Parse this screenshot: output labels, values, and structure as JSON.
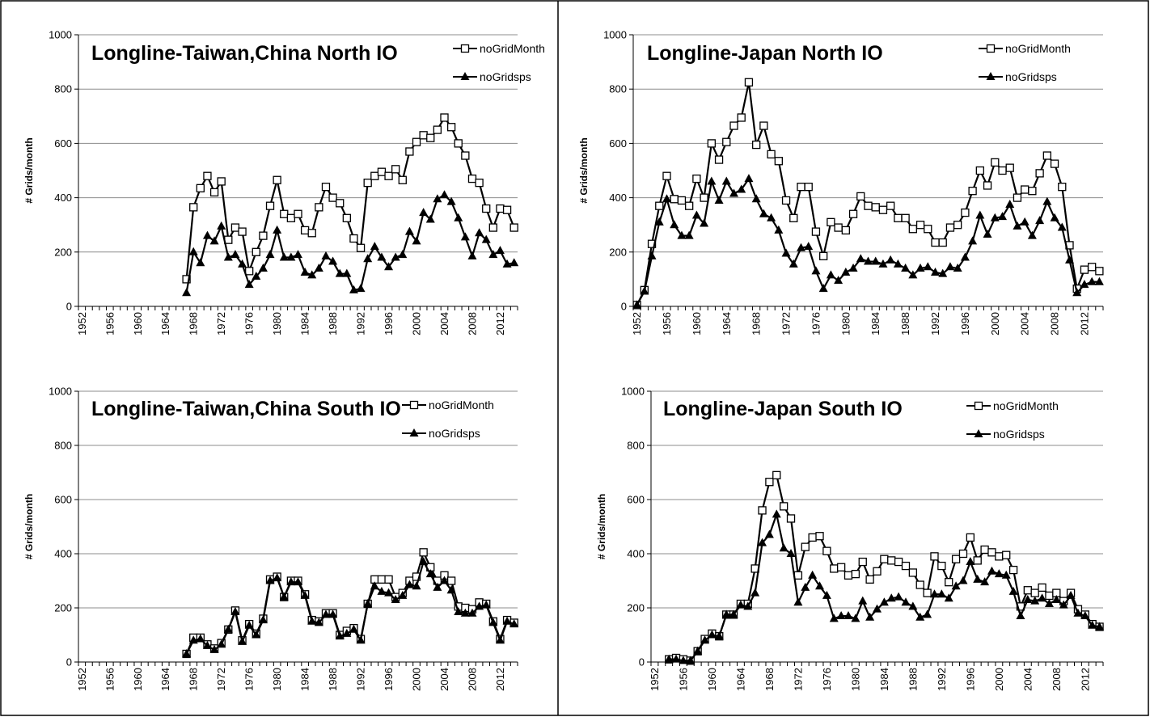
{
  "chart_data": [
    {
      "type": "line",
      "title": "Longline-Taiwan,China North IO",
      "ylabel": "# Grids/month",
      "categories": [
        "1952",
        null,
        null,
        null,
        "1956",
        null,
        null,
        null,
        "1960",
        null,
        null,
        null,
        "1964",
        null,
        null,
        null,
        "1968",
        null,
        null,
        null,
        "1972",
        null,
        null,
        null,
        "1976",
        null,
        null,
        null,
        "1980",
        null,
        null,
        null,
        "1984",
        null,
        null,
        null,
        "1988",
        null,
        null,
        null,
        "1992",
        null,
        null,
        null,
        "1996",
        null,
        null,
        null,
        "2000",
        null,
        null,
        null,
        "2004",
        null,
        null,
        null,
        "2008",
        null,
        null,
        null,
        "2012",
        null,
        null
      ],
      "series": [
        {
          "name": "noGridMonth",
          "color": "#000000",
          "marker": "square",
          "values": [
            null,
            null,
            null,
            null,
            null,
            null,
            null,
            null,
            null,
            null,
            null,
            null,
            null,
            null,
            null,
            100,
            365,
            435,
            480,
            420,
            460,
            245,
            290,
            275,
            130,
            200,
            260,
            370,
            465,
            340,
            325,
            340,
            280,
            270,
            365,
            440,
            400,
            380,
            325,
            250,
            215,
            455,
            480,
            495,
            480,
            505,
            465,
            570,
            605,
            630,
            620,
            650,
            695,
            660,
            600,
            555,
            470,
            455,
            360,
            290,
            360,
            355,
            290
          ]
        },
        {
          "name": "noGridsps",
          "color": "#000000",
          "marker": "triangle",
          "values": [
            null,
            null,
            null,
            null,
            null,
            null,
            null,
            null,
            null,
            null,
            null,
            null,
            null,
            null,
            null,
            50,
            200,
            160,
            260,
            240,
            295,
            180,
            190,
            155,
            80,
            110,
            140,
            190,
            280,
            180,
            180,
            190,
            125,
            115,
            140,
            185,
            165,
            120,
            120,
            60,
            65,
            175,
            220,
            180,
            145,
            180,
            190,
            275,
            240,
            345,
            320,
            395,
            410,
            385,
            325,
            255,
            185,
            270,
            245,
            190,
            205,
            155,
            160
          ]
        }
      ],
      "ylim": [
        0,
        1000
      ],
      "yticks": [
        0,
        200,
        400,
        600,
        800,
        1000
      ],
      "grid": true,
      "legend": "upper right"
    },
    {
      "type": "line",
      "title": "Longline-Japan North IO",
      "ylabel": "# Grids/month",
      "categories": [
        "1952",
        null,
        null,
        null,
        "1956",
        null,
        null,
        null,
        "1960",
        null,
        null,
        null,
        "1964",
        null,
        null,
        null,
        "1968",
        null,
        null,
        null,
        "1972",
        null,
        null,
        null,
        "1976",
        null,
        null,
        null,
        "1980",
        null,
        null,
        null,
        "1984",
        null,
        null,
        null,
        "1988",
        null,
        null,
        null,
        "1992",
        null,
        null,
        null,
        "1996",
        null,
        null,
        null,
        "2000",
        null,
        null,
        null,
        "2004",
        null,
        null,
        null,
        "2008",
        null,
        null,
        null,
        "2012",
        null,
        null
      ],
      "series": [
        {
          "name": "noGridMonth",
          "color": "#000000",
          "marker": "square",
          "values": [
            5,
            60,
            230,
            370,
            480,
            395,
            390,
            370,
            470,
            400,
            600,
            540,
            605,
            665,
            695,
            825,
            595,
            665,
            560,
            535,
            390,
            325,
            440,
            440,
            275,
            185,
            310,
            290,
            280,
            340,
            405,
            370,
            365,
            355,
            370,
            325,
            325,
            285,
            300,
            285,
            235,
            235,
            290,
            300,
            345,
            425,
            500,
            445,
            530,
            500,
            510,
            400,
            430,
            425,
            490,
            555,
            525,
            440,
            225,
            65,
            135,
            145,
            130
          ]
        },
        {
          "name": "noGridsps",
          "color": "#000000",
          "marker": "triangle",
          "values": [
            5,
            55,
            185,
            310,
            395,
            300,
            260,
            260,
            335,
            305,
            460,
            390,
            460,
            415,
            430,
            470,
            395,
            340,
            325,
            280,
            195,
            155,
            215,
            220,
            130,
            65,
            115,
            95,
            125,
            140,
            175,
            165,
            165,
            155,
            170,
            155,
            140,
            115,
            140,
            145,
            125,
            120,
            145,
            140,
            180,
            240,
            335,
            265,
            325,
            330,
            375,
            295,
            310,
            260,
            315,
            385,
            325,
            290,
            170,
            50,
            80,
            90,
            90
          ]
        }
      ],
      "ylim": [
        0,
        1000
      ],
      "yticks": [
        0,
        200,
        400,
        600,
        800,
        1000
      ],
      "grid": true,
      "legend": "upper right"
    },
    {
      "type": "line",
      "title": "Longline-Taiwan,China South IO",
      "ylabel": "# Grids/month",
      "categories": [
        "1952",
        null,
        null,
        null,
        "1956",
        null,
        null,
        null,
        "1960",
        null,
        null,
        null,
        "1964",
        null,
        null,
        null,
        "1968",
        null,
        null,
        null,
        "1972",
        null,
        null,
        null,
        "1976",
        null,
        null,
        null,
        "1980",
        null,
        null,
        null,
        "1984",
        null,
        null,
        null,
        "1988",
        null,
        null,
        null,
        "1992",
        null,
        null,
        null,
        "1996",
        null,
        null,
        null,
        "2000",
        null,
        null,
        null,
        "2004",
        null,
        null,
        null,
        "2008",
        null,
        null,
        null,
        "2012",
        null,
        null
      ],
      "series": [
        {
          "name": "noGridMonth",
          "color": "#000000",
          "marker": "square",
          "values": [
            null,
            null,
            null,
            null,
            null,
            null,
            null,
            null,
            null,
            null,
            null,
            null,
            null,
            null,
            null,
            30,
            90,
            90,
            65,
            50,
            70,
            120,
            190,
            80,
            140,
            105,
            160,
            305,
            315,
            240,
            300,
            300,
            250,
            155,
            150,
            180,
            180,
            100,
            115,
            125,
            85,
            215,
            305,
            305,
            305,
            240,
            255,
            300,
            315,
            405,
            350,
            300,
            320,
            300,
            205,
            200,
            195,
            220,
            215,
            150,
            85,
            155,
            145
          ]
        },
        {
          "name": "noGridsps",
          "color": "#000000",
          "marker": "triangle",
          "values": [
            null,
            null,
            null,
            null,
            null,
            null,
            null,
            null,
            null,
            null,
            null,
            null,
            null,
            null,
            null,
            30,
            80,
            85,
            60,
            45,
            65,
            120,
            185,
            75,
            135,
            100,
            155,
            300,
            310,
            240,
            295,
            295,
            245,
            150,
            145,
            175,
            175,
            95,
            105,
            120,
            80,
            215,
            280,
            260,
            255,
            230,
            245,
            285,
            280,
            370,
            325,
            275,
            300,
            265,
            185,
            180,
            180,
            205,
            210,
            145,
            80,
            150,
            140
          ]
        }
      ],
      "ylim": [
        0,
        1000
      ],
      "yticks": [
        0,
        200,
        400,
        600,
        800,
        1000
      ],
      "grid": true,
      "legend": "upper right"
    },
    {
      "type": "line",
      "title": "Longline-Japan South IO",
      "ylabel": "# Grids/month",
      "categories": [
        "1952",
        null,
        null,
        null,
        "1956",
        null,
        null,
        null,
        "1960",
        null,
        null,
        null,
        "1964",
        null,
        null,
        null,
        "1968",
        null,
        null,
        null,
        "1972",
        null,
        null,
        null,
        "1976",
        null,
        null,
        null,
        "1980",
        null,
        null,
        null,
        "1984",
        null,
        null,
        null,
        "1988",
        null,
        null,
        null,
        "1992",
        null,
        null,
        null,
        "1996",
        null,
        null,
        null,
        "2000",
        null,
        null,
        null,
        "2004",
        null,
        null,
        null,
        "2008",
        null,
        null,
        null,
        "2012",
        null,
        null
      ],
      "series": [
        {
          "name": "noGridMonth",
          "color": "#000000",
          "marker": "square",
          "values": [
            null,
            null,
            10,
            15,
            10,
            5,
            40,
            85,
            105,
            95,
            175,
            175,
            215,
            215,
            345,
            560,
            665,
            690,
            575,
            530,
            320,
            425,
            460,
            465,
            410,
            345,
            350,
            320,
            325,
            370,
            305,
            335,
            380,
            375,
            370,
            355,
            330,
            285,
            255,
            390,
            355,
            295,
            380,
            400,
            460,
            375,
            415,
            405,
            390,
            395,
            340,
            205,
            265,
            255,
            275,
            245,
            255,
            225,
            255,
            195,
            175,
            140,
            130
          ]
        },
        {
          "name": "noGridsps",
          "color": "#000000",
          "marker": "triangle",
          "values": [
            null,
            null,
            10,
            10,
            5,
            5,
            40,
            80,
            100,
            95,
            175,
            175,
            210,
            205,
            255,
            440,
            470,
            545,
            420,
            400,
            220,
            275,
            320,
            280,
            245,
            160,
            170,
            170,
            160,
            225,
            165,
            195,
            220,
            235,
            240,
            220,
            205,
            165,
            175,
            250,
            250,
            235,
            280,
            300,
            370,
            305,
            295,
            335,
            325,
            320,
            260,
            170,
            230,
            225,
            235,
            215,
            230,
            210,
            245,
            180,
            170,
            135,
            130
          ]
        }
      ],
      "ylim": [
        0,
        1000
      ],
      "yticks": [
        0,
        200,
        400,
        600,
        800,
        1000
      ],
      "grid": true,
      "legend": "upper right"
    }
  ]
}
